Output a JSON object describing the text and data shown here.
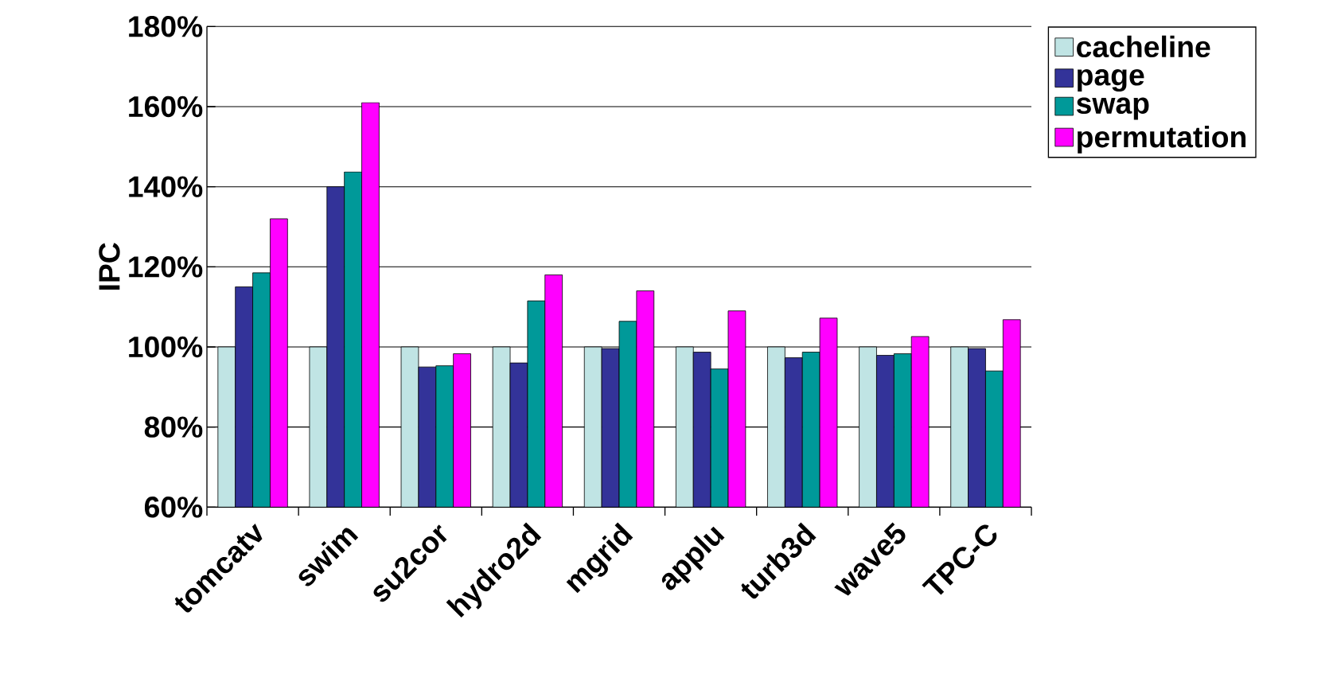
{
  "chart_data": {
    "type": "bar",
    "ylabel": "IPC",
    "categories": [
      "tomcatv",
      "swim",
      "su2cor",
      "hydro2d",
      "mgrid",
      "applu",
      "turb3d",
      "wave5",
      "TPC-C"
    ],
    "series": [
      {
        "name": "cacheline",
        "color": "#c0e4e4",
        "values": [
          100,
          100,
          100,
          100,
          100,
          100,
          100,
          100,
          100
        ]
      },
      {
        "name": "page",
        "color": "#333399",
        "values": [
          115,
          140,
          95,
          96,
          99.6,
          98.7,
          97.3,
          97.9,
          99.6
        ]
      },
      {
        "name": "swap",
        "color": "#009999",
        "values": [
          118.5,
          143.7,
          95.3,
          111.5,
          106.4,
          94.5,
          98.7,
          98.3,
          94
        ]
      },
      {
        "name": "permutation",
        "color": "#ff00ff",
        "values": [
          132,
          161,
          98.3,
          118,
          114,
          109,
          107.2,
          102.6,
          106.8
        ]
      }
    ],
    "ylim": [
      60,
      180
    ],
    "yticks": [
      {
        "value": 60,
        "label": "60%"
      },
      {
        "value": 80,
        "label": "80%"
      },
      {
        "value": 100,
        "label": "100%"
      },
      {
        "value": 120,
        "label": "120%"
      },
      {
        "value": 140,
        "label": "140%"
      },
      {
        "value": 160,
        "label": "160%"
      },
      {
        "value": 180,
        "label": "180%"
      }
    ],
    "grid": "y",
    "legend": "right"
  }
}
